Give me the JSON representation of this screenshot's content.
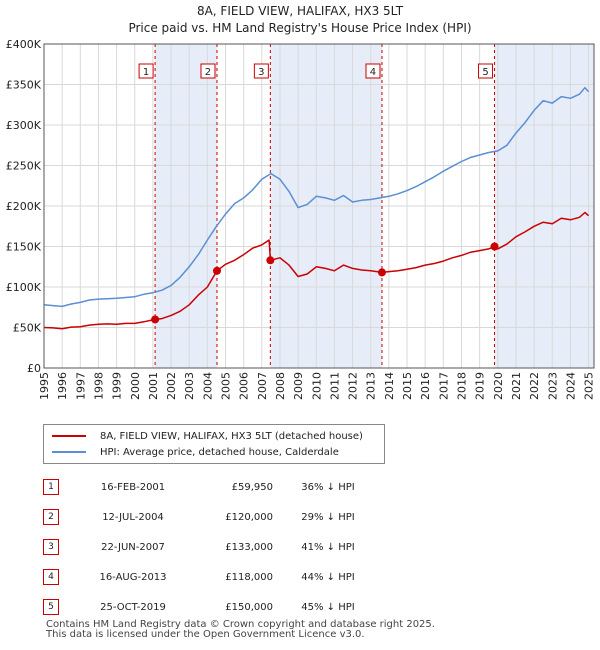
{
  "chart_data": {
    "type": "line",
    "title": "8A, FIELD VIEW, HALIFAX, HX3 5LT",
    "subtitle": "Price paid vs. HM Land Registry's House Price Index (HPI)",
    "xlabel": "",
    "ylabel": "",
    "xlim": [
      1995,
      2025.3
    ],
    "ylim": [
      0,
      400000
    ],
    "y_ticks": [
      {
        "value": 0,
        "label": "£0"
      },
      {
        "value": 50000,
        "label": "£50K"
      },
      {
        "value": 100000,
        "label": "£100K"
      },
      {
        "value": 150000,
        "label": "£150K"
      },
      {
        "value": 200000,
        "label": "£200K"
      },
      {
        "value": 250000,
        "label": "£250K"
      },
      {
        "value": 300000,
        "label": "£300K"
      },
      {
        "value": 350000,
        "label": "£350K"
      },
      {
        "value": 400000,
        "label": "£400K"
      }
    ],
    "x_ticks": [
      "1995",
      "1996",
      "1997",
      "1998",
      "1999",
      "2000",
      "2001",
      "2002",
      "2003",
      "2004",
      "2005",
      "2006",
      "2007",
      "2008",
      "2009",
      "2010",
      "2011",
      "2012",
      "2013",
      "2014",
      "2015",
      "2016",
      "2017",
      "2018",
      "2019",
      "2020",
      "2021",
      "2022",
      "2023",
      "2024",
      "2025"
    ],
    "grid": true,
    "colors": {
      "price": "#cc0000",
      "hpi": "#5b8fd4",
      "shade": "#e6edf8",
      "grid": "#d9d9d9"
    },
    "shaded_ranges": [
      [
        2001.12,
        2004.53
      ],
      [
        2007.47,
        2013.62
      ],
      [
        2019.82,
        2025.3
      ]
    ],
    "series": [
      {
        "name": "8A, FIELD VIEW, HALIFAX, HX3 5LT (detached house)",
        "color": "#cc0000",
        "points": [
          [
            1995.0,
            50000
          ],
          [
            1995.5,
            49500
          ],
          [
            1996.0,
            48500
          ],
          [
            1996.5,
            50500
          ],
          [
            1997.0,
            51000
          ],
          [
            1997.5,
            53000
          ],
          [
            1998.0,
            54000
          ],
          [
            1998.5,
            54500
          ],
          [
            1999.0,
            54000
          ],
          [
            1999.5,
            55000
          ],
          [
            2000.0,
            55000
          ],
          [
            2000.5,
            57000
          ],
          [
            2001.12,
            59950
          ],
          [
            2001.5,
            61000
          ],
          [
            2002.0,
            65000
          ],
          [
            2002.5,
            70000
          ],
          [
            2003.0,
            78000
          ],
          [
            2003.5,
            90000
          ],
          [
            2004.0,
            100000
          ],
          [
            2004.53,
            120000
          ],
          [
            2005.0,
            128000
          ],
          [
            2005.5,
            133000
          ],
          [
            2006.0,
            140000
          ],
          [
            2006.5,
            148000
          ],
          [
            2007.0,
            152000
          ],
          [
            2007.4,
            158000
          ],
          [
            2007.47,
            133000
          ],
          [
            2008.0,
            136000
          ],
          [
            2008.5,
            127000
          ],
          [
            2009.0,
            113000
          ],
          [
            2009.5,
            116000
          ],
          [
            2010.0,
            125000
          ],
          [
            2010.5,
            123000
          ],
          [
            2011.0,
            120000
          ],
          [
            2011.5,
            127000
          ],
          [
            2012.0,
            123000
          ],
          [
            2012.5,
            121000
          ],
          [
            2013.0,
            120000
          ],
          [
            2013.62,
            118000
          ],
          [
            2014.0,
            119000
          ],
          [
            2014.5,
            120000
          ],
          [
            2015.0,
            122000
          ],
          [
            2015.5,
            124000
          ],
          [
            2016.0,
            127000
          ],
          [
            2016.5,
            129000
          ],
          [
            2017.0,
            132000
          ],
          [
            2017.5,
            136000
          ],
          [
            2018.0,
            139000
          ],
          [
            2018.5,
            143000
          ],
          [
            2019.0,
            145000
          ],
          [
            2019.5,
            147000
          ],
          [
            2019.82,
            150000
          ],
          [
            2020.0,
            147000
          ],
          [
            2020.5,
            153000
          ],
          [
            2021.0,
            162000
          ],
          [
            2021.5,
            168000
          ],
          [
            2022.0,
            175000
          ],
          [
            2022.5,
            180000
          ],
          [
            2023.0,
            178000
          ],
          [
            2023.5,
            185000
          ],
          [
            2024.0,
            183000
          ],
          [
            2024.5,
            186000
          ],
          [
            2024.8,
            192000
          ],
          [
            2025.0,
            188000
          ]
        ]
      },
      {
        "name": "HPI: Average price, detached house, Calderdale",
        "color": "#5b8fd4",
        "points": [
          [
            1995.0,
            78000
          ],
          [
            1995.5,
            77000
          ],
          [
            1996.0,
            76000
          ],
          [
            1996.5,
            79000
          ],
          [
            1997.0,
            81000
          ],
          [
            1997.5,
            84000
          ],
          [
            1998.0,
            85000
          ],
          [
            1998.5,
            85500
          ],
          [
            1999.0,
            86000
          ],
          [
            1999.5,
            87000
          ],
          [
            2000.0,
            88000
          ],
          [
            2000.5,
            91000
          ],
          [
            2001.0,
            93000
          ],
          [
            2001.5,
            96000
          ],
          [
            2002.0,
            102000
          ],
          [
            2002.5,
            112000
          ],
          [
            2003.0,
            125000
          ],
          [
            2003.5,
            140000
          ],
          [
            2004.0,
            158000
          ],
          [
            2004.5,
            175000
          ],
          [
            2005.0,
            190000
          ],
          [
            2005.5,
            203000
          ],
          [
            2006.0,
            210000
          ],
          [
            2006.5,
            220000
          ],
          [
            2007.0,
            233000
          ],
          [
            2007.5,
            240000
          ],
          [
            2008.0,
            233000
          ],
          [
            2008.5,
            218000
          ],
          [
            2009.0,
            198000
          ],
          [
            2009.5,
            202000
          ],
          [
            2010.0,
            212000
          ],
          [
            2010.5,
            210000
          ],
          [
            2011.0,
            207000
          ],
          [
            2011.5,
            213000
          ],
          [
            2012.0,
            205000
          ],
          [
            2012.5,
            207000
          ],
          [
            2013.0,
            208000
          ],
          [
            2013.5,
            210000
          ],
          [
            2014.0,
            212000
          ],
          [
            2014.5,
            215000
          ],
          [
            2015.0,
            219000
          ],
          [
            2015.5,
            224000
          ],
          [
            2016.0,
            230000
          ],
          [
            2016.5,
            236000
          ],
          [
            2017.0,
            243000
          ],
          [
            2017.5,
            249000
          ],
          [
            2018.0,
            255000
          ],
          [
            2018.5,
            260000
          ],
          [
            2019.0,
            263000
          ],
          [
            2019.5,
            266000
          ],
          [
            2020.0,
            268000
          ],
          [
            2020.5,
            275000
          ],
          [
            2021.0,
            290000
          ],
          [
            2021.5,
            303000
          ],
          [
            2022.0,
            318000
          ],
          [
            2022.5,
            330000
          ],
          [
            2023.0,
            327000
          ],
          [
            2023.5,
            335000
          ],
          [
            2024.0,
            333000
          ],
          [
            2024.5,
            338000
          ],
          [
            2024.8,
            346000
          ],
          [
            2025.0,
            341000
          ]
        ]
      }
    ],
    "sales": [
      {
        "num": "1",
        "date": "16-FEB-2001",
        "year": 2001.12,
        "price_value": 59950,
        "price": "£59,950",
        "hpi": "36% ↓ HPI"
      },
      {
        "num": "2",
        "date": "12-JUL-2004",
        "year": 2004.53,
        "price_value": 120000,
        "price": "£120,000",
        "hpi": "29% ↓ HPI"
      },
      {
        "num": "3",
        "date": "22-JUN-2007",
        "year": 2007.47,
        "price_value": 133000,
        "price": "£133,000",
        "hpi": "41% ↓ HPI"
      },
      {
        "num": "4",
        "date": "16-AUG-2013",
        "year": 2013.62,
        "price_value": 118000,
        "price": "£118,000",
        "hpi": "44% ↓ HPI"
      },
      {
        "num": "5",
        "date": "25-OCT-2019",
        "year": 2019.82,
        "price_value": 150000,
        "price": "£150,000",
        "hpi": "45% ↓ HPI"
      }
    ]
  },
  "legend": {
    "price_label": "8A, FIELD VIEW, HALIFAX, HX3 5LT (detached house)",
    "hpi_label": "HPI: Average price, detached house, Calderdale"
  },
  "footer": {
    "line1": "Contains HM Land Registry data © Crown copyright and database right 2025.",
    "line2": "This data is licensed under the Open Government Licence v3.0."
  }
}
